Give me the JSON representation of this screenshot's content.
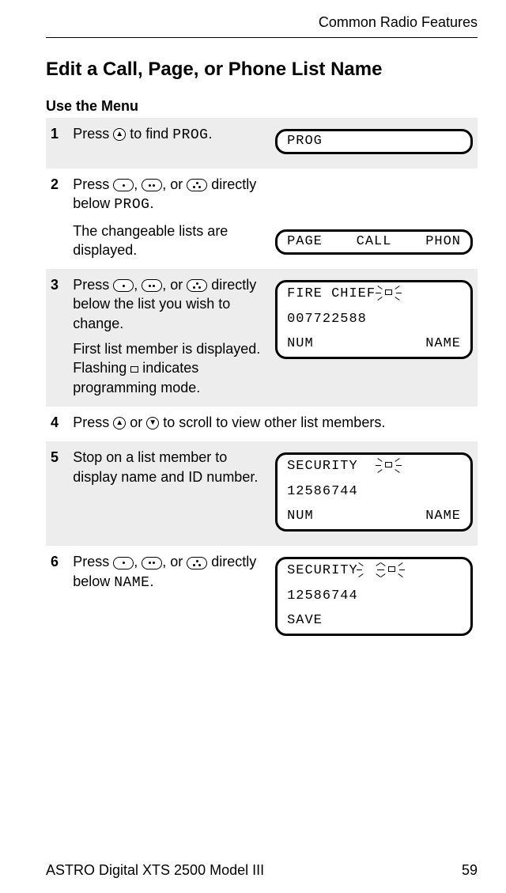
{
  "header": {
    "section": "Common Radio Features"
  },
  "title": "Edit a Call, Page, or Phone List Name",
  "subtitle": "Use the Menu",
  "monoLabels": {
    "prog": "PROG",
    "name": "NAME"
  },
  "steps": {
    "s1": {
      "num": "1",
      "text_a": "Press ",
      "text_b": " to find ",
      "mono": "PROG",
      "text_c": "."
    },
    "s2": {
      "num": "2",
      "text_a": "Press ",
      "comma1": ", ",
      "comma2": ", or ",
      "text_b": " directly below ",
      "mono": "PROG",
      "text_c": ".",
      "text_d": "The changeable lists are displayed."
    },
    "s3": {
      "num": "3",
      "text_a": "Press ",
      "comma1": ", ",
      "comma2": ", or ",
      "text_b": " directly below the list you wish to change.",
      "text_c": "First list member is displayed. Flashing ",
      "text_d": " indicates programming mode."
    },
    "s4": {
      "num": "4",
      "text_a": "Press ",
      "or": " or ",
      "text_b": " to scroll to view other list members."
    },
    "s5": {
      "num": "5",
      "text_a": "Stop on a list member to display name and ID number."
    },
    "s6": {
      "num": "6",
      "text_a": "Press ",
      "comma1": ", ",
      "comma2": ", or ",
      "text_b": " directly below ",
      "mono": "NAME",
      "text_c": "."
    }
  },
  "displays": {
    "d1": {
      "line1_left": "PROG"
    },
    "d2": {
      "line1_left": "PAGE",
      "line1_mid": "CALL",
      "line1_right": "PHON"
    },
    "d3": {
      "line1_left": "FIRE CHIEF",
      "line2": "007722588",
      "line3_left": "NUM",
      "line3_right": "NAME"
    },
    "d5": {
      "line1_left": "SECURITY",
      "line2": "12586744",
      "line3_left": "NUM",
      "line3_right": "NAME"
    },
    "d6": {
      "line1_left": "SECURITY",
      "line2": "12586744",
      "line3_left": "SAVE"
    }
  },
  "footer": {
    "model": "ASTRO Digital XTS 2500 Model III",
    "page": "59"
  },
  "colors": {
    "shaded": "#ededed",
    "text": "#000000",
    "bg": "#ffffff"
  }
}
